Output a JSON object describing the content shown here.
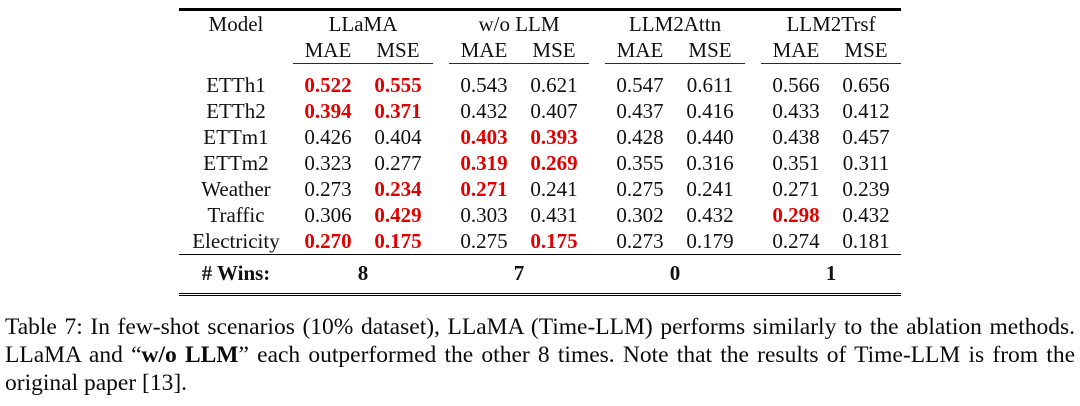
{
  "table": {
    "model_header": "Model",
    "col_groups": [
      {
        "label": "LLaMA"
      },
      {
        "label": "w/o LLM"
      },
      {
        "label": "LLM2Attn"
      },
      {
        "label": "LLM2Trsf"
      }
    ],
    "subheaders": [
      "MAE",
      "MSE"
    ],
    "rows": [
      {
        "model": "ETTh1",
        "values": [
          "0.522",
          "0.555",
          "0.543",
          "0.621",
          "0.547",
          "0.611",
          "0.566",
          "0.656"
        ],
        "highlight": [
          true,
          true,
          false,
          false,
          false,
          false,
          false,
          false
        ]
      },
      {
        "model": "ETTh2",
        "values": [
          "0.394",
          "0.371",
          "0.432",
          "0.407",
          "0.437",
          "0.416",
          "0.433",
          "0.412"
        ],
        "highlight": [
          true,
          true,
          false,
          false,
          false,
          false,
          false,
          false
        ]
      },
      {
        "model": "ETTm1",
        "values": [
          "0.426",
          "0.404",
          "0.403",
          "0.393",
          "0.428",
          "0.440",
          "0.438",
          "0.457"
        ],
        "highlight": [
          false,
          false,
          true,
          true,
          false,
          false,
          false,
          false
        ]
      },
      {
        "model": "ETTm2",
        "values": [
          "0.323",
          "0.277",
          "0.319",
          "0.269",
          "0.355",
          "0.316",
          "0.351",
          "0.311"
        ],
        "highlight": [
          false,
          false,
          true,
          true,
          false,
          false,
          false,
          false
        ]
      },
      {
        "model": "Weather",
        "values": [
          "0.273",
          "0.234",
          "0.271",
          "0.241",
          "0.275",
          "0.241",
          "0.271",
          "0.239"
        ],
        "highlight": [
          false,
          true,
          true,
          false,
          false,
          false,
          false,
          false
        ]
      },
      {
        "model": "Traffic",
        "values": [
          "0.306",
          "0.429",
          "0.303",
          "0.431",
          "0.302",
          "0.432",
          "0.298",
          "0.432"
        ],
        "highlight": [
          false,
          true,
          false,
          false,
          false,
          false,
          true,
          false
        ]
      },
      {
        "model": "Electricity",
        "values": [
          "0.270",
          "0.175",
          "0.275",
          "0.175",
          "0.273",
          "0.179",
          "0.274",
          "0.181"
        ],
        "highlight": [
          true,
          true,
          false,
          true,
          false,
          false,
          false,
          false
        ]
      }
    ],
    "wins": {
      "label": "# Wins:",
      "values": [
        "8",
        "7",
        "0",
        "1"
      ]
    }
  },
  "caption": {
    "parts": [
      {
        "text": "Table 7: In few-shot scenarios (10% dataset), LLaMA (Time-LLM) performs similarly to the ablation methods. LLaMA and “",
        "bold": false
      },
      {
        "text": "w/o LLM",
        "bold": true
      },
      {
        "text": "” each outperformed the other 8 times. Note that the results of Time-LLM is from the original paper [13].",
        "bold": false
      }
    ]
  },
  "colors": {
    "highlight": "#e10000",
    "text": "#111111"
  }
}
